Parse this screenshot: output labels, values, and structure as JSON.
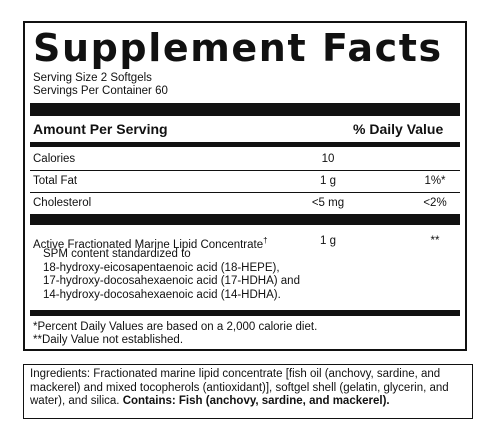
{
  "panel": {
    "title": "Supplement Facts",
    "serving_size": "Serving Size 2 Softgels",
    "servings_per_container": "Servings Per Container 60",
    "header_amount": "Amount Per Serving",
    "header_dv": "% Daily Value",
    "rows": [
      {
        "name": "Calories",
        "amount": "10",
        "dv": ""
      },
      {
        "name": "Total Fat",
        "amount": "1 g",
        "dv": "1%*"
      },
      {
        "name": "Cholesterol",
        "amount": "<5 mg",
        "dv": "<2%"
      }
    ],
    "active": {
      "name": "Active Fractionated Marine Lipid Concentrate",
      "dagger": "†",
      "amount": "1 g",
      "dv": "**",
      "spm_lines": [
        "SPM content standardized to",
        "18-hydroxy-eicosapentaenoic acid (18-HEPE),",
        "17-hydroxy-docosahexaenoic acid (17-HDHA) and",
        "14-hydroxy-docosahexaenoic acid (14-HDHA)."
      ]
    },
    "footnotes": [
      "*Percent Daily Values are based on a 2,000 calorie diet.",
      "**Daily Value not established."
    ]
  },
  "ingredients": {
    "label": "Ingredients:",
    "text": " Fractionated marine lipid concentrate [fish oil (anchovy, sardine, and mackerel) and mixed tocopherols (antioxidant)], softgel shell (gelatin, glycerin, and water), and silica. ",
    "contains": "Contains: Fish (anchovy, sardine, and mackerel)."
  }
}
